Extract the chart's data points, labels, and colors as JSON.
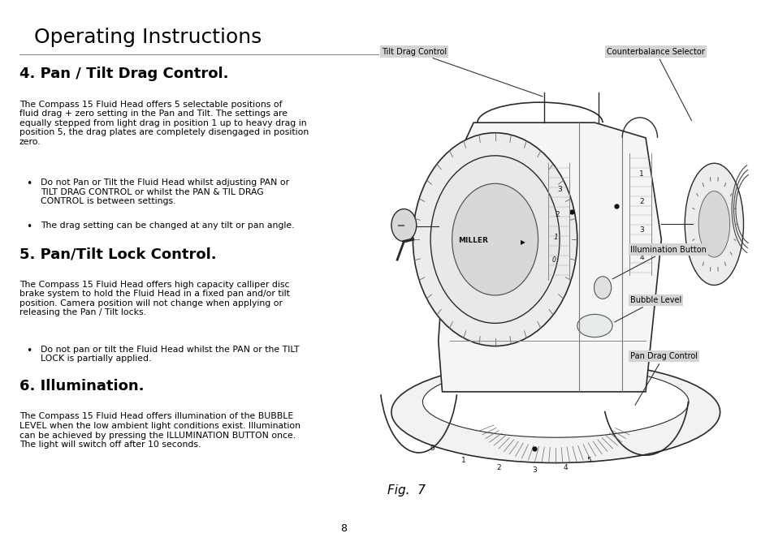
{
  "page_bg": "#ffffff",
  "header_bg": "#e8e8e8",
  "header_text": "Operating Instructions",
  "header_fontsize": 18,
  "section1_title": "4. Pan / Tilt Drag Control.",
  "section1_title_fontsize": 13,
  "section1_body": "The Compass 15 Fluid Head offers 5 selectable positions of\nfluid drag + zero setting in the Pan and Tilt. The settings are\nequally stepped from light drag in position 1 up to heavy drag in\nposition 5, the drag plates are completely disengaged in position\nzero.",
  "section1_bullet1": "Do not Pan or Tilt the Fluid Head whilst adjusting PAN or\nTILT DRAG CONTROL or whilst the PAN & TIL DRAG\nCONTROL is between settings.",
  "section1_bullet2": "The drag setting can be changed at any tilt or pan angle.",
  "section2_title": "5. Pan/Tilt Lock Control.",
  "section2_title_fontsize": 13,
  "section2_body": "The Compass 15 Fluid Head offers high capacity calliper disc\nbrake system to hold the Fluid Head in a fixed pan and/or tilt\nposition. Camera position will not change when applying or\nreleasing the Pan / Tilt locks.",
  "section2_bullet1": "Do not pan or tilt the Fluid Head whilst the PAN or the TILT\nLOCK is partially applied.",
  "section3_title": "6. Illumination.",
  "section3_title_fontsize": 13,
  "section3_body": "The Compass 15 Fluid Head offers illumination of the BUBBLE\nLEVEL when the low ambient light conditions exist. Illumination\ncan be achieved by pressing the ILLUMINATION BUTTON once.\nThe light will switch off after 10 seconds.",
  "page_number": "8",
  "footer_bg": "#e0e0e0",
  "fig_caption": "Fig.  7",
  "label_tilt": "Tilt Drag Control",
  "label_counter": "Counterbalance Selector",
  "label_illum": "Illumination Button",
  "label_bubble": "Bubble Level",
  "label_pan": "Pan Drag Control",
  "label_bg": "#d4d4d4",
  "text_color": "#000000",
  "body_fontsize": 7.8
}
